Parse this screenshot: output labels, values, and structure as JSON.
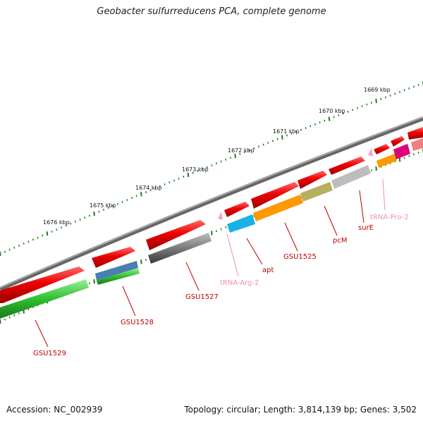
{
  "title": "Geobacter sulfurreducens PCA, complete genome",
  "footer": {
    "accession": "Accession: NC_002939",
    "info": "Topology: circular; Length: 3,814,139 bp; Genes: 3,502"
  },
  "scale": {
    "unit": "kbp",
    "labels": [
      "1669 kbp",
      "1670 kbp",
      "1671 kbp",
      "1672 kbp",
      "1673 kbp",
      "1674 kbp",
      "1675 kbp",
      "1676 kbp"
    ]
  },
  "colors": {
    "backbone": "#7a7a7a",
    "forward_gene": "#ee0000",
    "label_gene": "#cc0000",
    "label_trna": "#f08cbd",
    "tick": "#1e7a1e"
  },
  "features": [
    {
      "label": "GSU1529",
      "color": "#2fbf2f"
    },
    {
      "label": "GSU1528",
      "color": "#4a7fb0"
    },
    {
      "label": "GSU1527",
      "color": "#5a5a5a"
    },
    {
      "label": "tRNA-Arg-2",
      "color": "#f5a0c8"
    },
    {
      "label": "apt",
      "color": "#1ab0e8"
    },
    {
      "label": "GSU1525",
      "color": "#ff9900"
    },
    {
      "label": "pcM",
      "color": "#b5b060"
    },
    {
      "label": "surE",
      "color": "#bdbdbd"
    },
    {
      "label": "tRNA-Pro-2",
      "color": "#f5a0c8"
    }
  ]
}
